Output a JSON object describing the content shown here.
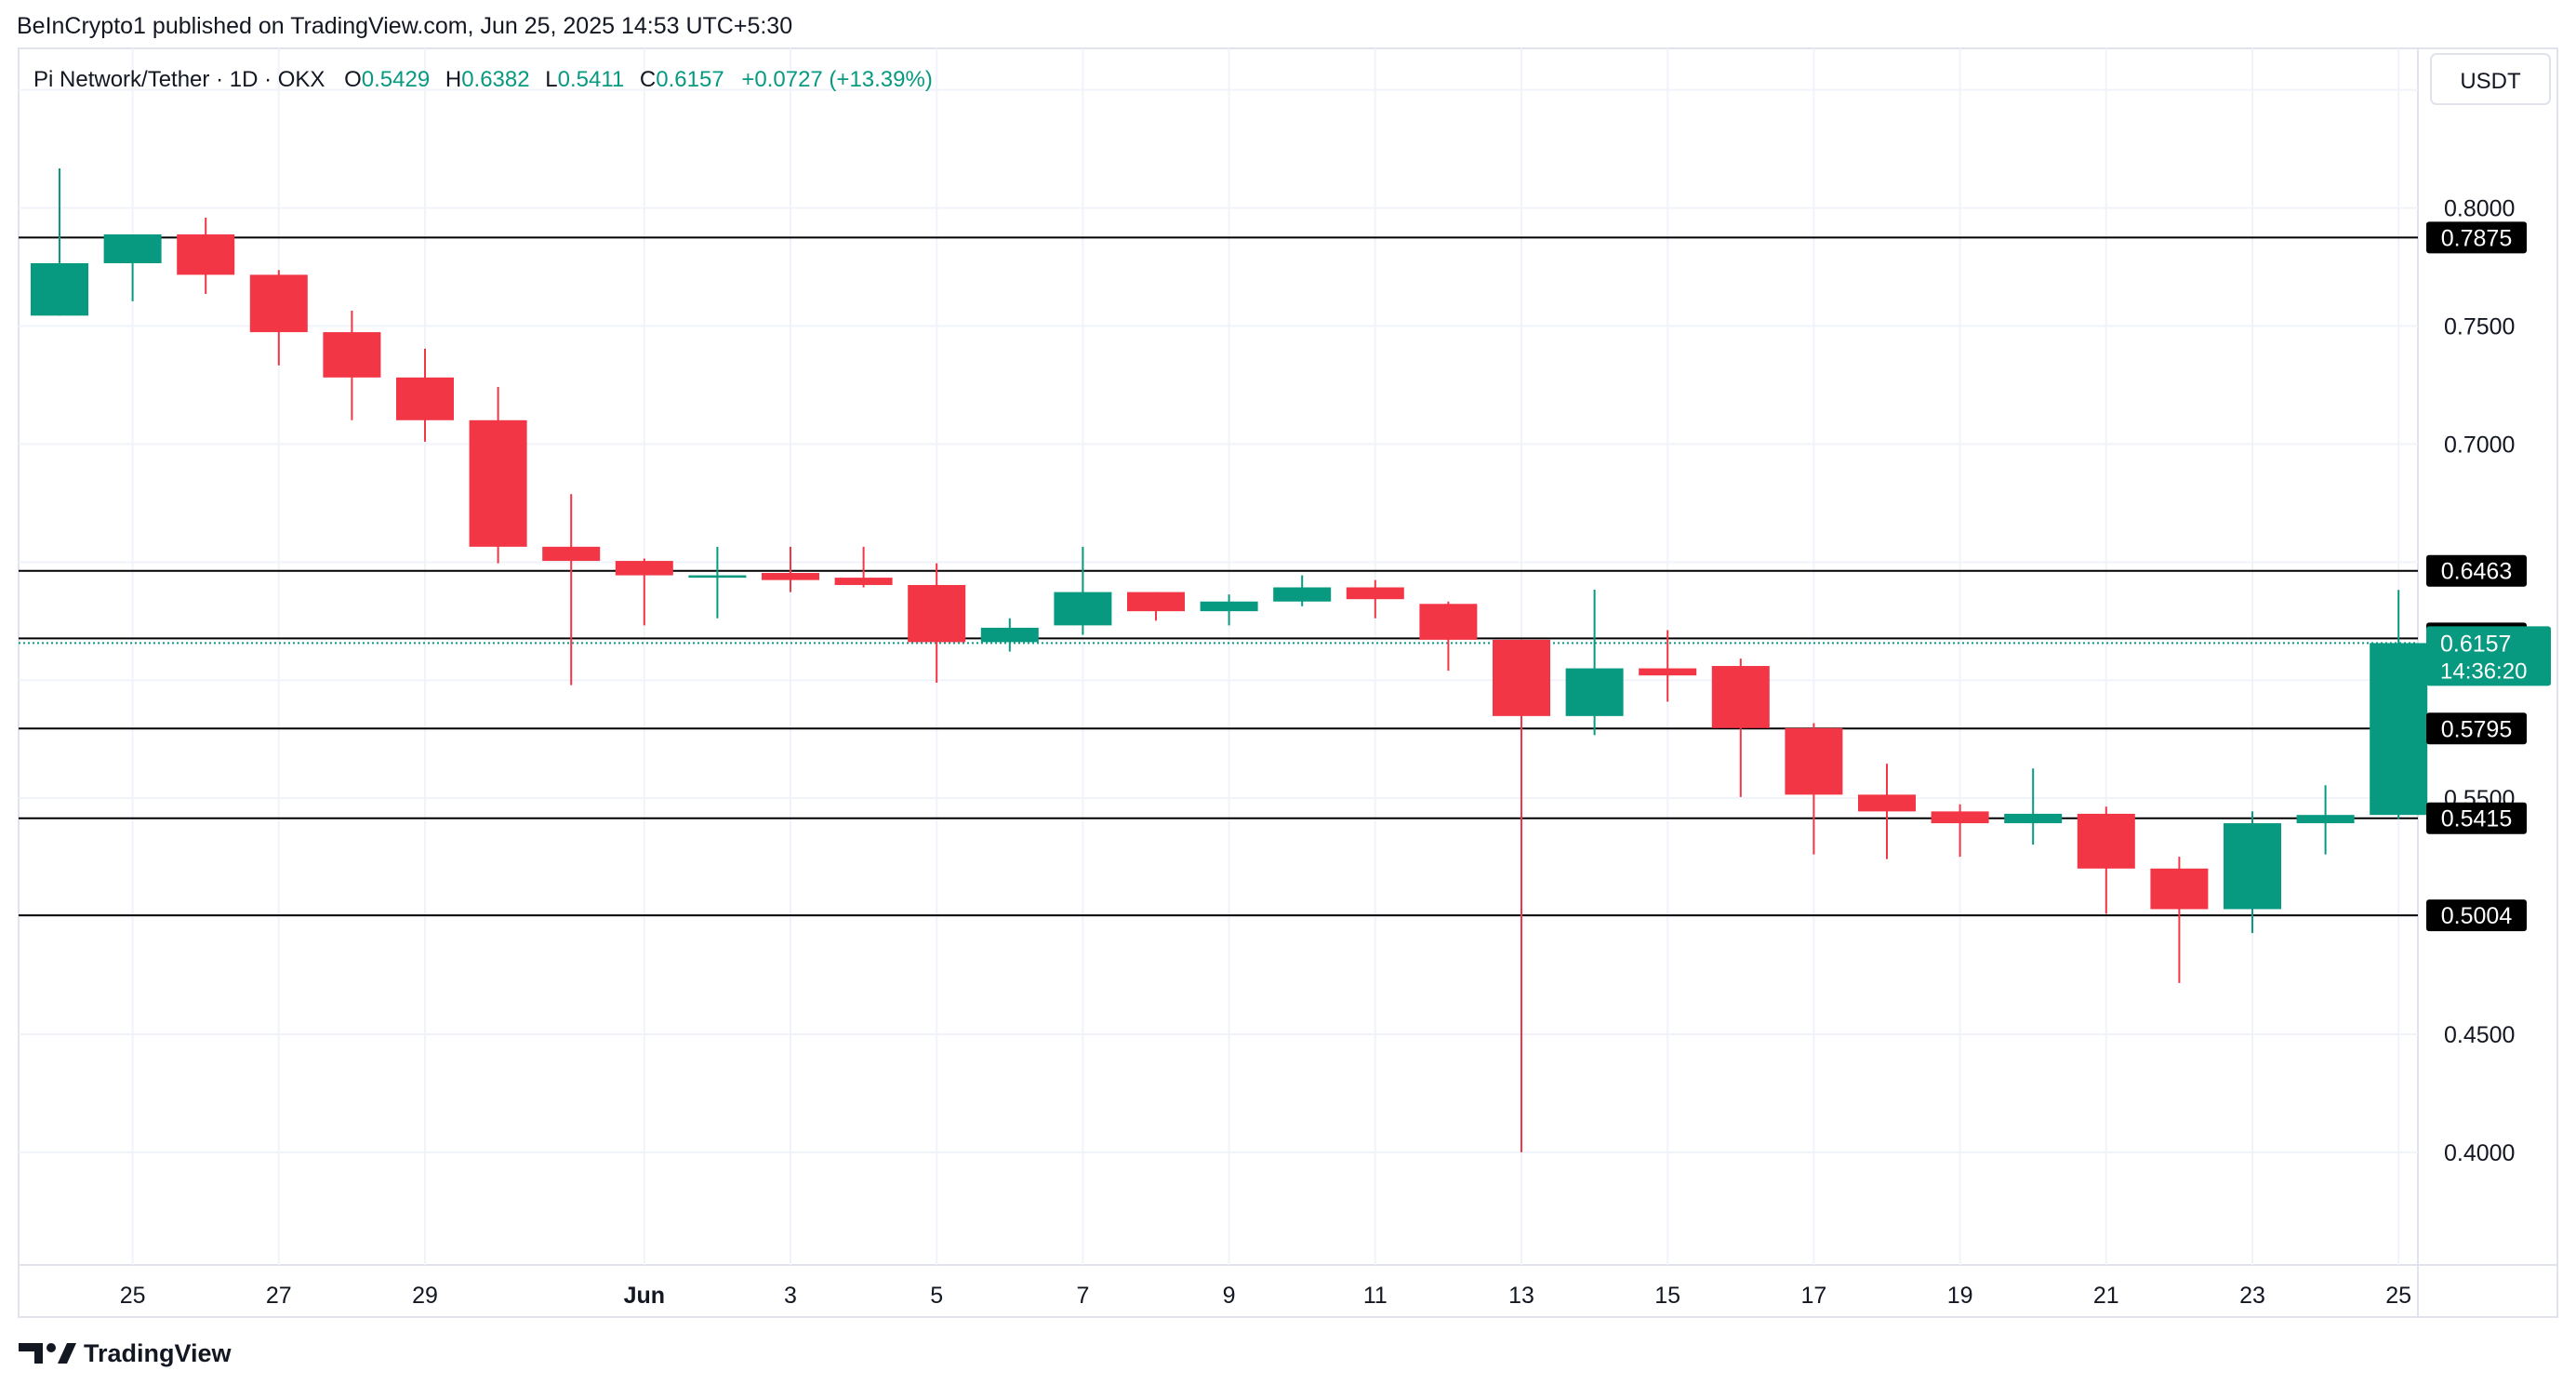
{
  "header": {
    "credit": "BeInCrypto1 published on TradingView.com, Jun 25, 2025 14:53 UTC+5:30"
  },
  "legend": {
    "symbol": "Pi Network/Tether · 1D · OKX",
    "o_label": "O",
    "o_value": "0.5429",
    "h_label": "H",
    "h_value": "0.6382",
    "l_label": "L",
    "l_value": "0.5411",
    "c_label": "C",
    "c_value": "0.6157",
    "change": "+0.0727 (+13.39%)"
  },
  "currency_label": "USDT",
  "price_labels": [
    "0.8000",
    "0.7500",
    "0.7000",
    "0.5500",
    "0.4500",
    "0.4000"
  ],
  "current_price": {
    "value": "0.6157",
    "countdown": "14:36:20"
  },
  "footer": {
    "logo_text": "TradingView"
  },
  "colors": {
    "up": "#089981",
    "down": "#F23645",
    "level_line": "#000000",
    "grid": "#F0F3FA",
    "text": "#131722",
    "tag_bg": "#000000",
    "tag_text": "#FFFFFF"
  },
  "chart_data": {
    "type": "candlestick",
    "title": "Pi Network/Tether · 1D · OKX",
    "ylim": [
      0.3523,
      0.8676
    ],
    "grid": true,
    "x_tick_labels": [
      "25",
      "27",
      "29",
      "Jun",
      "3",
      "5",
      "7",
      "9",
      "11",
      "13",
      "15",
      "17",
      "19",
      "21",
      "23",
      "25"
    ],
    "x_tick_index": [
      1,
      3,
      5,
      8,
      10,
      12,
      14,
      16,
      18,
      20,
      22,
      24,
      26,
      28,
      30,
      32
    ],
    "candles": [
      {
        "date": "May 24",
        "open": 0.7544,
        "high": 0.8168,
        "low": 0.7544,
        "close": 0.7766
      },
      {
        "date": "May 25",
        "open": 0.7766,
        "high": 0.7888,
        "low": 0.7605,
        "close": 0.7888
      },
      {
        "date": "May 26",
        "open": 0.7888,
        "high": 0.7959,
        "low": 0.7636,
        "close": 0.7717
      },
      {
        "date": "May 27",
        "open": 0.7717,
        "high": 0.7737,
        "low": 0.7333,
        "close": 0.7474
      },
      {
        "date": "May 28",
        "open": 0.7474,
        "high": 0.7565,
        "low": 0.7101,
        "close": 0.7282
      },
      {
        "date": "May 29",
        "open": 0.7282,
        "high": 0.7404,
        "low": 0.701,
        "close": 0.7101
      },
      {
        "date": "May 30",
        "open": 0.7101,
        "high": 0.7242,
        "low": 0.6495,
        "close": 0.6565
      },
      {
        "date": "May 31",
        "open": 0.6565,
        "high": 0.6788,
        "low": 0.5979,
        "close": 0.6505
      },
      {
        "date": "Jun 1",
        "open": 0.6505,
        "high": 0.6515,
        "low": 0.6232,
        "close": 0.6444
      },
      {
        "date": "Jun 2",
        "open": 0.6434,
        "high": 0.6565,
        "low": 0.6262,
        "close": 0.6444
      },
      {
        "date": "Jun 3",
        "open": 0.6454,
        "high": 0.6565,
        "low": 0.6373,
        "close": 0.6424
      },
      {
        "date": "Jun 4",
        "open": 0.6434,
        "high": 0.6565,
        "low": 0.6393,
        "close": 0.6403
      },
      {
        "date": "Jun 5",
        "open": 0.6403,
        "high": 0.6495,
        "low": 0.5989,
        "close": 0.6161
      },
      {
        "date": "Jun 6",
        "open": 0.6161,
        "high": 0.6262,
        "low": 0.6121,
        "close": 0.6222
      },
      {
        "date": "Jun 7",
        "open": 0.6232,
        "high": 0.6565,
        "low": 0.6192,
        "close": 0.6373
      },
      {
        "date": "Jun 8",
        "open": 0.6373,
        "high": 0.6373,
        "low": 0.6252,
        "close": 0.6292
      },
      {
        "date": "Jun 9",
        "open": 0.6292,
        "high": 0.6363,
        "low": 0.6232,
        "close": 0.6333
      },
      {
        "date": "Jun 10",
        "open": 0.6333,
        "high": 0.6444,
        "low": 0.6313,
        "close": 0.6393
      },
      {
        "date": "Jun 11",
        "open": 0.6393,
        "high": 0.6424,
        "low": 0.6262,
        "close": 0.6343
      },
      {
        "date": "Jun 12",
        "open": 0.6323,
        "high": 0.6333,
        "low": 0.604,
        "close": 0.6171
      },
      {
        "date": "Jun 13",
        "open": 0.6171,
        "high": 0.6171,
        "low": 0.4,
        "close": 0.5848
      },
      {
        "date": "Jun 14",
        "open": 0.5848,
        "high": 0.6383,
        "low": 0.5767,
        "close": 0.605
      },
      {
        "date": "Jun 15",
        "open": 0.605,
        "high": 0.6212,
        "low": 0.5909,
        "close": 0.602
      },
      {
        "date": "Jun 16",
        "open": 0.606,
        "high": 0.6091,
        "low": 0.5505,
        "close": 0.5797
      },
      {
        "date": "Jun 17",
        "open": 0.5797,
        "high": 0.5818,
        "low": 0.5262,
        "close": 0.5515
      },
      {
        "date": "Jun 18",
        "open": 0.5515,
        "high": 0.5646,
        "low": 0.5242,
        "close": 0.5444
      },
      {
        "date": "Jun 19",
        "open": 0.5444,
        "high": 0.5474,
        "low": 0.5252,
        "close": 0.5394
      },
      {
        "date": "Jun 20",
        "open": 0.5394,
        "high": 0.5626,
        "low": 0.5303,
        "close": 0.5434
      },
      {
        "date": "Jun 21",
        "open": 0.5434,
        "high": 0.5464,
        "low": 0.501,
        "close": 0.5202
      },
      {
        "date": "Jun 22",
        "open": 0.5202,
        "high": 0.5252,
        "low": 0.4717,
        "close": 0.503
      },
      {
        "date": "Jun 23",
        "open": 0.503,
        "high": 0.5444,
        "low": 0.4929,
        "close": 0.5394
      },
      {
        "date": "Jun 24",
        "open": 0.5394,
        "high": 0.5555,
        "low": 0.5262,
        "close": 0.5429
      },
      {
        "date": "Jun 25",
        "open": 0.5429,
        "high": 0.6382,
        "low": 0.5411,
        "close": 0.6157
      }
    ],
    "horizontal_levels": [
      "0.7875",
      "0.6463",
      "0.6177",
      "0.5795",
      "0.5415",
      "0.5004"
    ]
  }
}
